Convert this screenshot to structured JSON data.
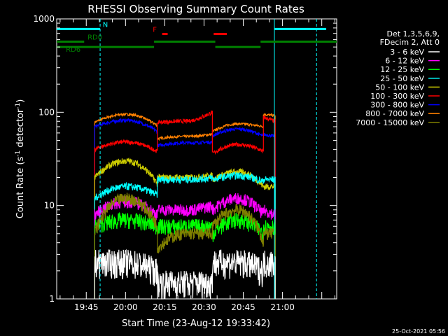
{
  "chart_data": {
    "type": "line",
    "title": "RHESSI Observing Summary Count Rates",
    "xlabel": "Start Time (23-Aug-12 19:33:42)",
    "ylabel_main": "Count Rate (s",
    "ylabel_sup1": "-1",
    "ylabel_mid": " detector",
    "ylabel_sup2": "-1",
    "ylabel_end": ")",
    "y_scale": "log",
    "ylim": [
      1,
      1000
    ],
    "xlim_minutes": [
      0,
      107
    ],
    "x_ticks": [
      {
        "label": "19:45",
        "minute": 11.3
      },
      {
        "label": "20:00",
        "minute": 26.3
      },
      {
        "label": "20:15",
        "minute": 41.3
      },
      {
        "label": "20:30",
        "minute": 56.3
      },
      {
        "label": "20:45",
        "minute": 71.3
      },
      {
        "label": "21:00",
        "minute": 86.3
      }
    ],
    "y_ticks": [
      {
        "label": "1",
        "value": 1
      },
      {
        "label": "10",
        "value": 10
      },
      {
        "label": "100",
        "value": 100
      },
      {
        "label": "1000",
        "value": 1000
      }
    ],
    "legend": {
      "placement": "right",
      "header": [
        "Det 1,3,5,6,9,",
        "FDecim 2, Att 0"
      ],
      "entries": [
        {
          "label": "3 - 6 keV",
          "color": "#ffffff"
        },
        {
          "label": "6 - 12 keV",
          "color": "#ff00ff"
        },
        {
          "label": "12 - 25 keV",
          "color": "#00ff00"
        },
        {
          "label": "25 - 50 keV",
          "color": "#00ffff"
        },
        {
          "label": "50 - 100 keV",
          "color": "#cccc00"
        },
        {
          "label": "100 - 300 keV",
          "color": "#ff0000"
        },
        {
          "label": "300 - 800 keV",
          "color": "#0000ff"
        },
        {
          "label": "800 - 7000 keV",
          "color": "#ff8000"
        },
        {
          "label": "7000 - 15000 keV",
          "color": "#808000"
        }
      ]
    },
    "segments": [
      {
        "start": 14.5,
        "end": 38.5
      },
      {
        "start": 38.5,
        "end": 59.5
      },
      {
        "start": 59.5,
        "end": 79.0
      },
      {
        "start": 79.0,
        "end": 83.5
      }
    ],
    "series": [
      {
        "color": "#ff8000",
        "levels": [
          [
            78,
            95,
            72
          ],
          [
            52,
            55,
            58
          ],
          [
            62,
            75,
            70
          ],
          [
            95,
            92
          ]
        ],
        "noise": 0.03
      },
      {
        "color": "#0000ff",
        "levels": [
          [
            70,
            82,
            62
          ],
          [
            44,
            47,
            48
          ],
          [
            56,
            66,
            55
          ],
          [
            58,
            55
          ]
        ],
        "noise": 0.04
      },
      {
        "color": "#ff0000",
        "levels": [
          [
            40,
            48,
            38
          ],
          [
            78,
            80,
            100
          ],
          [
            36,
            45,
            38
          ],
          [
            88,
            80
          ]
        ],
        "noise": 0.05
      },
      {
        "color": "#cccc00",
        "levels": [
          [
            20,
            30,
            17
          ],
          [
            20,
            20,
            21
          ],
          [
            19,
            23,
            16
          ],
          [
            16,
            16
          ]
        ],
        "noise": 0.08
      },
      {
        "color": "#00ffff",
        "levels": [
          [
            12,
            16,
            13
          ],
          [
            19,
            19,
            20
          ],
          [
            19,
            21,
            18
          ],
          [
            19,
            19
          ]
        ],
        "noise": 0.09
      },
      {
        "color": "#ff00ff",
        "levels": [
          [
            8,
            11,
            8
          ],
          [
            9,
            9,
            10
          ],
          [
            9,
            12,
            8
          ],
          [
            9,
            8
          ]
        ],
        "noise": 0.15
      },
      {
        "color": "#00ff00",
        "levels": [
          [
            6,
            7,
            6
          ],
          [
            6,
            6,
            6
          ],
          [
            5,
            7,
            5
          ],
          [
            6,
            6
          ]
        ],
        "noise": 0.2
      },
      {
        "color": "#808000",
        "levels": [
          [
            5,
            12,
            6
          ],
          [
            3.5,
            5,
            5
          ],
          [
            6,
            9,
            4
          ],
          [
            5,
            5
          ]
        ],
        "noise": 0.15
      },
      {
        "color": "#ffffff",
        "levels": [
          [
            2.5,
            2.5,
            2
          ],
          [
            1.5,
            1.5,
            1.5
          ],
          [
            2.5,
            2.5,
            2
          ],
          [
            2.5,
            2.5
          ]
        ],
        "noise": 0.35
      }
    ],
    "status_bars": [
      {
        "label": "N",
        "color": "#00ffff",
        "y": 780,
        "from": 0,
        "to": 16.6,
        "label_at": 17.6
      },
      {
        "label": "",
        "color": "#00ffff",
        "y": 780,
        "from": 83.2,
        "to": 103,
        "label_at": null
      },
      {
        "label": "RD0",
        "color": "#008000",
        "y": 570,
        "from": 0,
        "to": 10.5,
        "label_at": 11.8
      },
      {
        "label": "RD6",
        "color": "#008000",
        "y": 500,
        "from": 0,
        "to": 37.2,
        "label_at": 3.5
      },
      {
        "label": "",
        "color": "#008000",
        "y": 570,
        "from": 37.2,
        "to": 60.6,
        "label_at": null
      },
      {
        "label": "",
        "color": "#008000",
        "y": 500,
        "from": 60.6,
        "to": 77.9,
        "label_at": null
      },
      {
        "label": "",
        "color": "#008000",
        "y": 570,
        "from": 77.9,
        "to": 107,
        "label_at": null
      },
      {
        "label": "F",
        "color": "#ff0000",
        "y": 690,
        "from": 40.3,
        "to": 42.4,
        "label_at": 36.7
      },
      {
        "label": "",
        "color": "#ff0000",
        "y": 690,
        "from": 60.0,
        "to": 65.0,
        "label_at": null
      }
    ],
    "vlines": [
      {
        "color": "#00ffff",
        "minute": 16.6,
        "dashed": true
      },
      {
        "color": "#00ffff",
        "minute": 83.2,
        "dashed": false
      },
      {
        "color": "#00ffff",
        "minute": 99.3,
        "dashed": true
      }
    ],
    "footer": "25-Oct-2021 05:56"
  }
}
